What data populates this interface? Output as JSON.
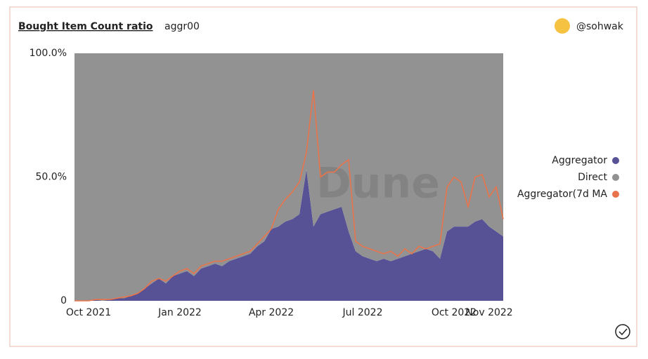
{
  "chart_data": {
    "type": "stacked-area-line",
    "title": "Bought Item Count ratio",
    "subtitle": "aggr00",
    "author": "@sohwak",
    "watermark": "Dune",
    "categories": [
      null,
      null,
      "Oct 2021",
      null,
      null,
      null,
      null,
      null,
      null,
      null,
      null,
      null,
      null,
      null,
      null,
      "Jan 2022",
      null,
      null,
      null,
      null,
      null,
      null,
      null,
      null,
      null,
      null,
      null,
      null,
      "Apr 2022",
      null,
      null,
      null,
      null,
      null,
      null,
      null,
      null,
      null,
      null,
      null,
      null,
      "Jul 2022",
      null,
      null,
      null,
      null,
      null,
      null,
      null,
      null,
      null,
      null,
      null,
      null,
      "Oct 2022",
      null,
      null,
      null,
      null,
      "Nov 2022",
      null,
      null
    ],
    "series": [
      {
        "name": "Aggregator",
        "color": "#575195",
        "kind": "area",
        "values": [
          0,
          0,
          0,
          0.5,
          0,
          0.5,
          1,
          1,
          2,
          3,
          5,
          7,
          9,
          7,
          10,
          11,
          12,
          10,
          13,
          14,
          15,
          14,
          16,
          17,
          18,
          19,
          22,
          24,
          29,
          30,
          32,
          33,
          35,
          53,
          30,
          35,
          36,
          37,
          38,
          28,
          20,
          18,
          17,
          16,
          17,
          16,
          17,
          18,
          19,
          20,
          21,
          20,
          17,
          28,
          30,
          30,
          30,
          32,
          33,
          30,
          28,
          26
        ]
      },
      {
        "name": "Direct",
        "color": "#929292",
        "kind": "area",
        "values": [
          100,
          100,
          100,
          99.5,
          100,
          99.5,
          99,
          99,
          98,
          97,
          95,
          93,
          91,
          93,
          90,
          89,
          88,
          90,
          87,
          86,
          85,
          86,
          84,
          83,
          82,
          81,
          78,
          76,
          71,
          70,
          68,
          67,
          65,
          47,
          70,
          65,
          64,
          63,
          62,
          72,
          80,
          82,
          83,
          84,
          83,
          84,
          83,
          82,
          81,
          80,
          79,
          80,
          83,
          72,
          70,
          70,
          70,
          68,
          67,
          70,
          72,
          74
        ]
      },
      {
        "name": "Aggregator(7d MA",
        "color": "#e8744c",
        "kind": "line",
        "values": [
          0,
          0,
          0,
          0.5,
          0.5,
          0.5,
          1,
          1.5,
          2,
          3,
          5,
          8,
          9,
          8,
          10,
          12,
          13,
          11,
          14,
          15,
          16,
          16,
          17,
          18,
          19,
          20,
          23,
          26,
          29,
          37,
          41,
          44,
          48,
          60,
          85,
          50,
          52,
          52,
          55,
          57,
          24,
          22,
          21,
          20,
          19,
          20,
          18,
          21,
          19,
          22,
          21,
          22,
          23,
          46,
          50,
          48,
          38,
          50,
          51,
          42,
          46,
          33
        ]
      }
    ],
    "ylim": [
      0,
      100
    ],
    "yticks": [
      0,
      {
        "value": 50,
        "label": "50.0%"
      },
      {
        "value": 100,
        "label": "100.0%"
      }
    ],
    "grid": false,
    "legend": "right"
  }
}
